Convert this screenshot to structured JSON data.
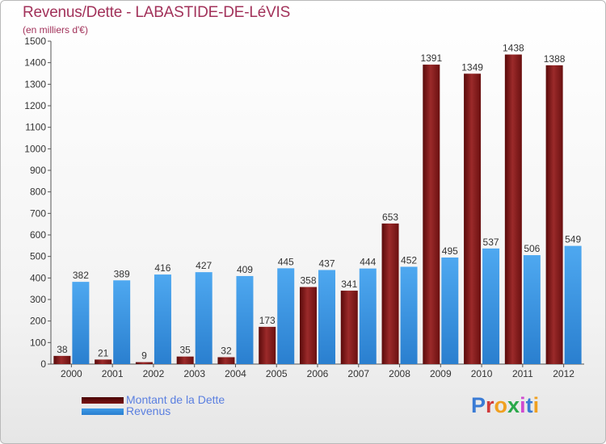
{
  "title": "Revenus/Dette - LABASTIDE-DE-LéVIS",
  "subtitle": "(en milliers d'€)",
  "colors": {
    "dette": "#7a1515",
    "revenus": "#3d9ae8",
    "title": "#a2325a",
    "legend_text": "#5a7fe0"
  },
  "legend": {
    "dette_label": "Montant de la Dette",
    "revenus_label": "Revenus"
  },
  "logo": {
    "text": "Proxiti",
    "letter_colors": [
      "#3a7bd5",
      "#d03a3a",
      "#f0a020",
      "#2aa84a",
      "#d04ad0",
      "#3a7bd5",
      "#f0a020"
    ]
  },
  "chart_data": {
    "type": "bar",
    "categories": [
      "2000",
      "2001",
      "2002",
      "2003",
      "2004",
      "2005",
      "2006",
      "2007",
      "2008",
      "2009",
      "2010",
      "2011",
      "2012"
    ],
    "series": [
      {
        "name": "Montant de la Dette",
        "values": [
          38,
          21,
          9,
          35,
          32,
          173,
          358,
          341,
          653,
          1391,
          1349,
          1438,
          1388
        ]
      },
      {
        "name": "Revenus",
        "values": [
          382,
          389,
          416,
          427,
          409,
          445,
          437,
          444,
          452,
          495,
          537,
          506,
          549
        ]
      }
    ],
    "ylim": [
      0,
      1500
    ],
    "yticks": [
      0,
      100,
      200,
      300,
      400,
      500,
      600,
      700,
      800,
      900,
      1000,
      1100,
      1200,
      1300,
      1400,
      1500
    ],
    "grid": false,
    "legend_position": "bottom-left"
  }
}
